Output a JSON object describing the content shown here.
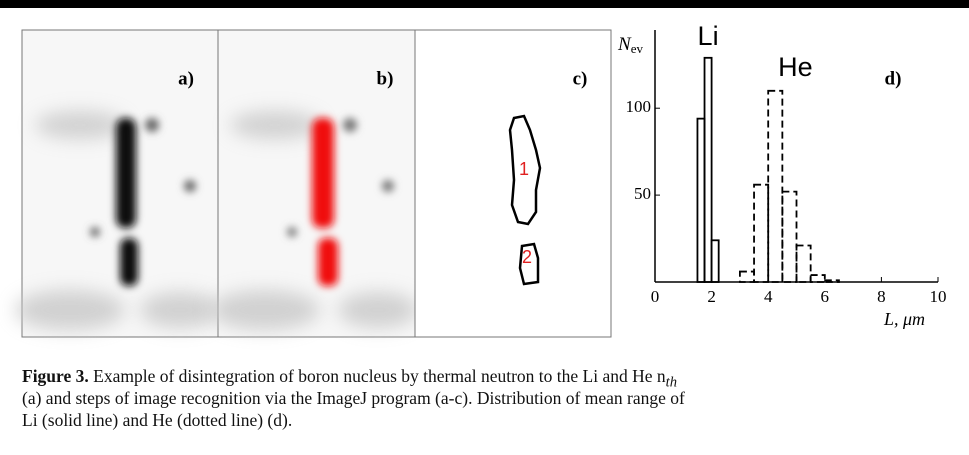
{
  "panels": [
    {
      "label": "a)"
    },
    {
      "label": "b)"
    },
    {
      "label": "c)",
      "markers": [
        "1",
        "2"
      ]
    }
  ],
  "chart_data": {
    "type": "histogram",
    "panel_label": "d)",
    "y_label": "N",
    "y_label_sub": "ev",
    "x_label": "L, μm",
    "xlim": [
      0,
      10
    ],
    "xticks": [
      0,
      2,
      4,
      6,
      8,
      10
    ],
    "ylim": [
      0,
      145
    ],
    "yticks": [
      50,
      100
    ],
    "series": [
      {
        "name": "Li",
        "color": "#000000",
        "linestyle": "solid",
        "bins": [
          1.5,
          1.75,
          2.0,
          2.25
        ],
        "values": [
          94,
          129,
          24
        ]
      },
      {
        "name": "He",
        "color": "#000000",
        "linestyle": "dashed",
        "bins": [
          3.0,
          3.5,
          4.0,
          4.5,
          5.0,
          5.5,
          6.0,
          6.5
        ],
        "values": [
          6,
          56,
          110,
          52,
          21,
          4,
          1
        ]
      }
    ]
  },
  "caption": {
    "label": "Figure 3.",
    "line1": "Example of disintegration of boron nucleus by thermal neutron to the Li and He n",
    "line1_sub": "th",
    "line2": "(a) and steps of image recognition via the ImageJ program (a-c). Distribution of mean range of",
    "line3": "Li (solid line) and He (dotted line) (d)."
  }
}
